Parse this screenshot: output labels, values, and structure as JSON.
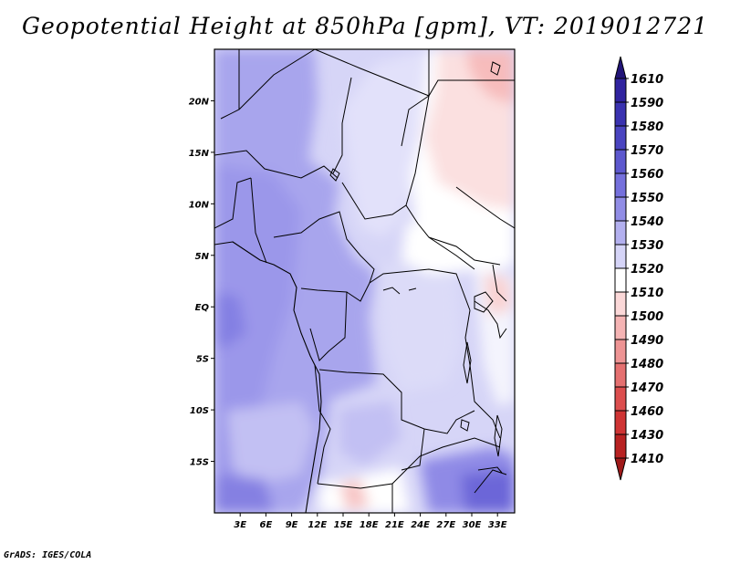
{
  "title": "Geopotential Height at 850hPa [gpm], VT: 2019012721",
  "credit": "GrADS: IGES/COLA",
  "map": {
    "lon_range": [
      0,
      35
    ],
    "lat_range": [
      -20,
      25
    ],
    "lon_ticks": [
      {
        "value": 3,
        "label": "3E"
      },
      {
        "value": 6,
        "label": "6E"
      },
      {
        "value": 9,
        "label": "9E"
      },
      {
        "value": 12,
        "label": "12E"
      },
      {
        "value": 15,
        "label": "15E"
      },
      {
        "value": 18,
        "label": "18E"
      },
      {
        "value": 21,
        "label": "21E"
      },
      {
        "value": 24,
        "label": "24E"
      },
      {
        "value": 27,
        "label": "27E"
      },
      {
        "value": 30,
        "label": "30E"
      },
      {
        "value": 33,
        "label": "33E"
      }
    ],
    "lat_ticks": [
      {
        "value": 20,
        "label": "20N"
      },
      {
        "value": 15,
        "label": "15N"
      },
      {
        "value": 10,
        "label": "10N"
      },
      {
        "value": 5,
        "label": "5N"
      },
      {
        "value": 0,
        "label": "EQ"
      },
      {
        "value": -5,
        "label": "5S"
      },
      {
        "value": -10,
        "label": "10S"
      },
      {
        "value": -15,
        "label": "15S"
      }
    ]
  },
  "colorbar": {
    "levels": [
      {
        "label": "1610",
        "color": "#2a1a8e"
      },
      {
        "label": "1590",
        "color": "#30239f"
      },
      {
        "label": "1580",
        "color": "#3a32b0"
      },
      {
        "label": "1570",
        "color": "#4a44c0"
      },
      {
        "label": "1560",
        "color": "#5d58ce"
      },
      {
        "label": "1550",
        "color": "#7570dc"
      },
      {
        "label": "1540",
        "color": "#918de6"
      },
      {
        "label": "1530",
        "color": "#b3b0ef"
      },
      {
        "label": "1520",
        "color": "#d5d4f7"
      },
      {
        "label": "1510",
        "color": "#ffffff"
      },
      {
        "label": "1500",
        "color": "#fbd8d8"
      },
      {
        "label": "1490",
        "color": "#f5b4b4"
      },
      {
        "label": "1480",
        "color": "#ee9494"
      },
      {
        "label": "1470",
        "color": "#e57070"
      },
      {
        "label": "1460",
        "color": "#dc4e4e"
      },
      {
        "label": "1430",
        "color": "#cf3434"
      },
      {
        "label": "1410",
        "color": "#b82222"
      }
    ],
    "over_color": "#221478",
    "under_color": "#a01a1a"
  }
}
